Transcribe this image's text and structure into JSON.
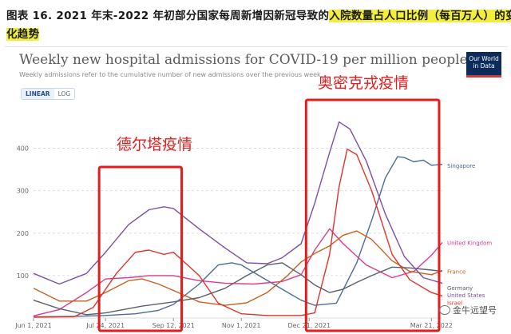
{
  "report_caption": {
    "line1_plain": "图表 16. 2021 年末-2022 年初部分国家每周新增因新冠导致的",
    "line1_highlight": "入院数量占人口比例（每百万人）的变",
    "line2_highlight": "化趋势"
  },
  "owid_logo_text": "Our World in Data",
  "toggle": {
    "linear": "LINEAR",
    "log": "LOG",
    "selected": "LINEAR"
  },
  "watermark": {
    "text": "金牛远望号"
  },
  "colors": {
    "singapore": "#4c6a9c",
    "uk": "#d83c8e",
    "france": "#c9601e",
    "germany": "#5a6069",
    "us": "#7b4fa8",
    "israel": "#e0332a",
    "annotation": "#e21d1d",
    "gridline": "#dddddd"
  },
  "chart_data": {
    "type": "line",
    "title": "Weekly new hospital admissions for COVID-19 per million people",
    "subtitle": "Weekly admissions refer to the cumulative number of new admissions over the previous week.",
    "xlabel": "",
    "ylabel": "",
    "x_ticks": [
      "Jun 1, 2021",
      "Jul 24, 2021",
      "Sep 12, 2021",
      "Nov 1, 2021",
      "Dec 21, 2021",
      "Mar 21, 2022"
    ],
    "y_ticks": [
      0,
      100,
      200,
      300,
      400
    ],
    "ylim": [
      0,
      480
    ],
    "grid": true,
    "series": [
      {
        "name": "Singapore",
        "color_key": "singapore",
        "points": [
          [
            "2021-06-01",
            3
          ],
          [
            "2021-07-01",
            4
          ],
          [
            "2021-07-24",
            6
          ],
          [
            "2021-08-15",
            10
          ],
          [
            "2021-09-01",
            18
          ],
          [
            "2021-09-12",
            32
          ],
          [
            "2021-10-01",
            80
          ],
          [
            "2021-10-15",
            125
          ],
          [
            "2021-10-25",
            130
          ],
          [
            "2021-11-01",
            125
          ],
          [
            "2021-11-15",
            98
          ],
          [
            "2021-12-01",
            68
          ],
          [
            "2021-12-15",
            42
          ],
          [
            "2021-12-25",
            30
          ],
          [
            "2022-01-10",
            35
          ],
          [
            "2022-01-25",
            130
          ],
          [
            "2022-02-05",
            230
          ],
          [
            "2022-02-15",
            330
          ],
          [
            "2022-02-24",
            380
          ],
          [
            "2022-03-01",
            378
          ],
          [
            "2022-03-08",
            368
          ],
          [
            "2022-03-15",
            372
          ],
          [
            "2022-03-21",
            360
          ],
          [
            "2022-03-29",
            362
          ]
        ]
      },
      {
        "name": "United Kingdom",
        "color_key": "uk",
        "points": [
          [
            "2021-06-01",
            5
          ],
          [
            "2021-06-20",
            20
          ],
          [
            "2021-07-10",
            60
          ],
          [
            "2021-07-24",
            92
          ],
          [
            "2021-08-10",
            95
          ],
          [
            "2021-08-25",
            100
          ],
          [
            "2021-09-12",
            100
          ],
          [
            "2021-10-01",
            88
          ],
          [
            "2021-10-20",
            82
          ],
          [
            "2021-11-10",
            80
          ],
          [
            "2021-12-01",
            86
          ],
          [
            "2021-12-15",
            102
          ],
          [
            "2021-12-25",
            160
          ],
          [
            "2022-01-05",
            210
          ],
          [
            "2022-01-15",
            175
          ],
          [
            "2022-02-01",
            125
          ],
          [
            "2022-02-20",
            95
          ],
          [
            "2022-03-08",
            110
          ],
          [
            "2022-03-21",
            148
          ],
          [
            "2022-03-29",
            178
          ]
        ]
      },
      {
        "name": "France",
        "color_key": "france",
        "points": [
          [
            "2021-06-01",
            70
          ],
          [
            "2021-06-20",
            40
          ],
          [
            "2021-07-10",
            40
          ],
          [
            "2021-07-24",
            60
          ],
          [
            "2021-08-10",
            88
          ],
          [
            "2021-08-20",
            92
          ],
          [
            "2021-09-01",
            80
          ],
          [
            "2021-09-12",
            65
          ],
          [
            "2021-10-01",
            38
          ],
          [
            "2021-10-20",
            30
          ],
          [
            "2021-11-05",
            36
          ],
          [
            "2021-11-20",
            60
          ],
          [
            "2021-12-05",
            100
          ],
          [
            "2021-12-15",
            132
          ],
          [
            "2021-12-25",
            152
          ],
          [
            "2022-01-05",
            170
          ],
          [
            "2022-01-15",
            195
          ],
          [
            "2022-01-25",
            205
          ],
          [
            "2022-02-05",
            185
          ],
          [
            "2022-02-20",
            135
          ],
          [
            "2022-03-05",
            110
          ],
          [
            "2022-03-21",
            102
          ],
          [
            "2022-03-29",
            112
          ]
        ]
      },
      {
        "name": "Germany",
        "color_key": "germany",
        "points": [
          [
            "2021-06-01",
            42
          ],
          [
            "2021-06-20",
            22
          ],
          [
            "2021-07-10",
            8
          ],
          [
            "2021-07-24",
            12
          ],
          [
            "2021-08-20",
            28
          ],
          [
            "2021-09-12",
            38
          ],
          [
            "2021-10-01",
            48
          ],
          [
            "2021-10-20",
            70
          ],
          [
            "2021-11-05",
            100
          ],
          [
            "2021-11-20",
            125
          ],
          [
            "2021-12-01",
            130
          ],
          [
            "2021-12-15",
            102
          ],
          [
            "2021-12-25",
            78
          ],
          [
            "2022-01-05",
            60
          ],
          [
            "2022-01-15",
            68
          ],
          [
            "2022-01-25",
            84
          ],
          [
            "2022-02-05",
            100
          ],
          [
            "2022-02-20",
            120
          ],
          [
            "2022-03-05",
            118
          ],
          [
            "2022-03-21",
            113
          ],
          [
            "2022-03-29",
            110
          ]
        ]
      },
      {
        "name": "United States",
        "color_key": "us",
        "points": [
          [
            "2021-06-01",
            105
          ],
          [
            "2021-06-20",
            80
          ],
          [
            "2021-07-10",
            105
          ],
          [
            "2021-07-24",
            155
          ],
          [
            "2021-08-10",
            220
          ],
          [
            "2021-08-25",
            255
          ],
          [
            "2021-09-05",
            262
          ],
          [
            "2021-09-12",
            258
          ],
          [
            "2021-10-01",
            210
          ],
          [
            "2021-10-20",
            165
          ],
          [
            "2021-11-05",
            130
          ],
          [
            "2021-11-20",
            128
          ],
          [
            "2021-12-01",
            142
          ],
          [
            "2021-12-15",
            175
          ],
          [
            "2021-12-25",
            270
          ],
          [
            "2022-01-05",
            390
          ],
          [
            "2022-01-12",
            462
          ],
          [
            "2022-01-20",
            445
          ],
          [
            "2022-02-01",
            370
          ],
          [
            "2022-02-15",
            245
          ],
          [
            "2022-03-01",
            145
          ],
          [
            "2022-03-15",
            95
          ],
          [
            "2022-03-29",
            82
          ]
        ]
      },
      {
        "name": "Israel",
        "color_key": "israel",
        "points": [
          [
            "2021-06-01",
            2
          ],
          [
            "2021-07-01",
            3
          ],
          [
            "2021-07-15",
            25
          ],
          [
            "2021-08-01",
            105
          ],
          [
            "2021-08-15",
            155
          ],
          [
            "2021-08-25",
            160
          ],
          [
            "2021-09-05",
            150
          ],
          [
            "2021-09-12",
            155
          ],
          [
            "2021-10-01",
            100
          ],
          [
            "2021-10-15",
            35
          ],
          [
            "2021-11-01",
            10
          ],
          [
            "2021-11-20",
            6
          ],
          [
            "2021-12-15",
            6
          ],
          [
            "2021-12-25",
            12
          ],
          [
            "2022-01-05",
            150
          ],
          [
            "2022-01-12",
            310
          ],
          [
            "2022-01-18",
            398
          ],
          [
            "2022-01-25",
            385
          ],
          [
            "2022-02-05",
            300
          ],
          [
            "2022-02-20",
            150
          ],
          [
            "2022-03-05",
            90
          ],
          [
            "2022-03-21",
            60
          ],
          [
            "2022-03-29",
            52
          ]
        ]
      }
    ],
    "annotations": [
      {
        "label": "德尔塔疫情",
        "period": [
          "2021-07-24",
          "2021-10-01"
        ]
      },
      {
        "label": "奥密克戎疫情",
        "period": [
          "2021-12-21",
          "2022-03-29"
        ]
      }
    ]
  }
}
